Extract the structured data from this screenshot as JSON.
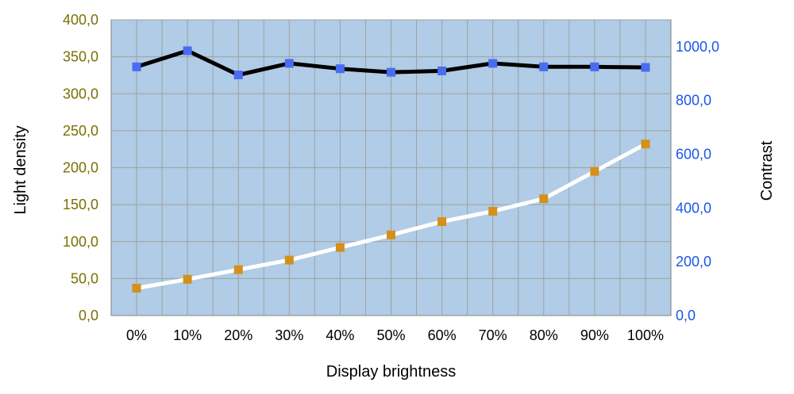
{
  "chart_data": {
    "type": "line",
    "title": "",
    "xlabel": "Display brightness",
    "ylabel": "Light density",
    "y2label": "Contrast",
    "categories": [
      "0%",
      "10%",
      "20%",
      "30%",
      "40%",
      "50%",
      "60%",
      "70%",
      "80%",
      "90%",
      "100%"
    ],
    "ylim": [
      0,
      400
    ],
    "y2lim": [
      0,
      1100
    ],
    "yticks": [
      "0,0",
      "50,0",
      "100,0",
      "150,0",
      "200,0",
      "250,0",
      "300,0",
      "350,0",
      "400,0"
    ],
    "yticks_values": [
      0,
      50,
      100,
      150,
      200,
      250,
      300,
      350,
      400
    ],
    "y2ticks": [
      "0,0",
      "200,0",
      "400,0",
      "600,0",
      "800,0",
      "1000,0"
    ],
    "y2ticks_values": [
      0,
      200,
      400,
      600,
      800,
      1000
    ],
    "grid": true,
    "series": [
      {
        "axis": "right",
        "line_color": "#000000",
        "marker_color": "#4a6cf0",
        "values": [
          925,
          985,
          895,
          938,
          918,
          905,
          910,
          938,
          925,
          925,
          923
        ]
      },
      {
        "axis": "left",
        "line_color": "#ffffff",
        "marker_color": "#d4901a",
        "values": [
          37,
          49,
          62,
          75,
          92,
          109,
          127,
          141,
          158,
          195,
          232
        ]
      }
    ],
    "colors": {
      "plot_background": "#b0cce6",
      "grid": "#a0a0a0",
      "left_tick_color": "#7a7000",
      "right_tick_color": "#1a56e8"
    }
  }
}
